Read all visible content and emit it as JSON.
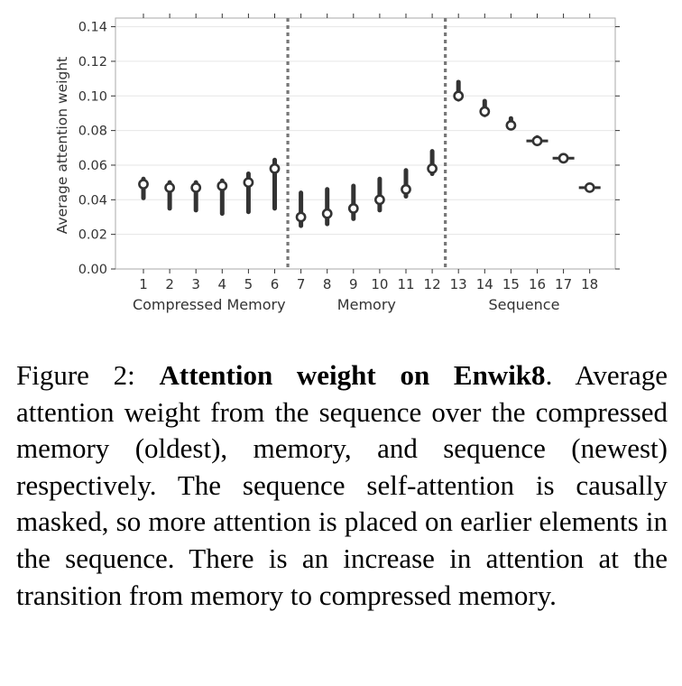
{
  "figure": {
    "label": "Figure 2:",
    "title": "Attention weight on Enwik8",
    "title_suffix": ".",
    "description": "Average attention weight from the sequence over the compressed memory (oldest), memory, and sequence (newest) respectively. The sequence self-attention is causally masked, so more attention is placed on earlier elements in the sequence. There is an increase in attention at the transition from memory to compressed memory."
  },
  "chart_data": {
    "type": "violin",
    "title": "",
    "xlabel": "",
    "ylabel": "Average attention weight",
    "ylim": [
      0.0,
      0.145
    ],
    "yticks": [
      0.0,
      0.02,
      0.04,
      0.06,
      0.08,
      0.1,
      0.12,
      0.14
    ],
    "ytick_labels": [
      "0.00",
      "0.02",
      "0.04",
      "0.06",
      "0.08",
      "0.10",
      "0.12",
      "0.14"
    ],
    "grid": true,
    "categories": [
      "1",
      "2",
      "3",
      "4",
      "5",
      "6",
      "7",
      "8",
      "9",
      "10",
      "11",
      "12",
      "13",
      "14",
      "15",
      "16",
      "17",
      "18"
    ],
    "medians": [
      0.049,
      0.047,
      0.047,
      0.048,
      0.05,
      0.058,
      0.03,
      0.032,
      0.035,
      0.04,
      0.046,
      0.058,
      0.1,
      0.091,
      0.083,
      0.074,
      0.064,
      0.047
    ],
    "low": [
      0.041,
      0.035,
      0.034,
      0.032,
      0.033,
      0.035,
      0.025,
      0.026,
      0.029,
      0.034,
      0.042,
      0.055,
      0.098,
      0.089,
      0.082,
      0.074,
      0.064,
      0.047
    ],
    "high": [
      0.052,
      0.05,
      0.05,
      0.051,
      0.055,
      0.063,
      0.044,
      0.046,
      0.048,
      0.052,
      0.057,
      0.068,
      0.108,
      0.097,
      0.087,
      0.076,
      0.064,
      0.047
    ],
    "groups": [
      {
        "name": "Compressed Memory",
        "from": 1,
        "to": 6
      },
      {
        "name": "Memory",
        "from": 7,
        "to": 12
      },
      {
        "name": "Sequence",
        "from": 13,
        "to": 18
      }
    ],
    "separators_after": [
      6,
      12
    ],
    "colors": {
      "marker": "#333333",
      "separator": "#777777",
      "grid": "#e6e6e6",
      "axis": "#aaaaaa"
    }
  }
}
